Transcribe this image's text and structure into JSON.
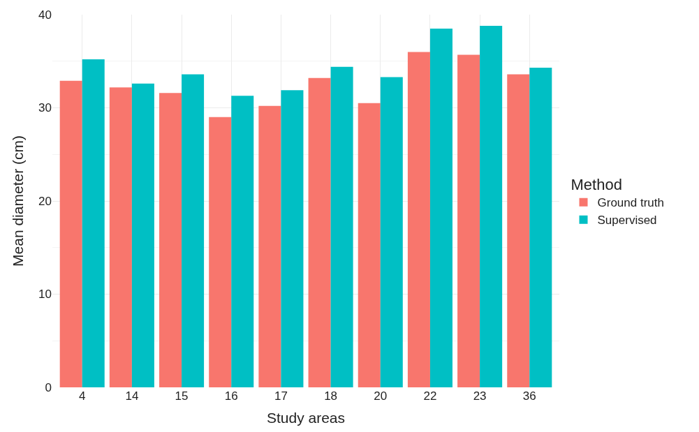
{
  "chart_data": {
    "type": "bar",
    "xlabel": "Study areas",
    "ylabel": "Mean diameter (cm)",
    "legend_title": "Method",
    "categories": [
      "4",
      "14",
      "15",
      "16",
      "17",
      "18",
      "20",
      "22",
      "23",
      "36"
    ],
    "series": [
      {
        "name": "Ground truth",
        "color": "#f8766d",
        "values": [
          32.9,
          32.2,
          31.6,
          29.0,
          30.2,
          33.2,
          30.5,
          36.0,
          35.7,
          33.6
        ]
      },
      {
        "name": "Supervised",
        "color": "#00bfc4",
        "values": [
          35.2,
          32.6,
          33.6,
          31.3,
          31.9,
          34.4,
          33.3,
          38.5,
          38.8,
          34.3
        ]
      }
    ],
    "ylim": [
      0,
      40
    ],
    "yticks": [
      0,
      10,
      20,
      30,
      40
    ],
    "grid": true,
    "legend": "right"
  }
}
